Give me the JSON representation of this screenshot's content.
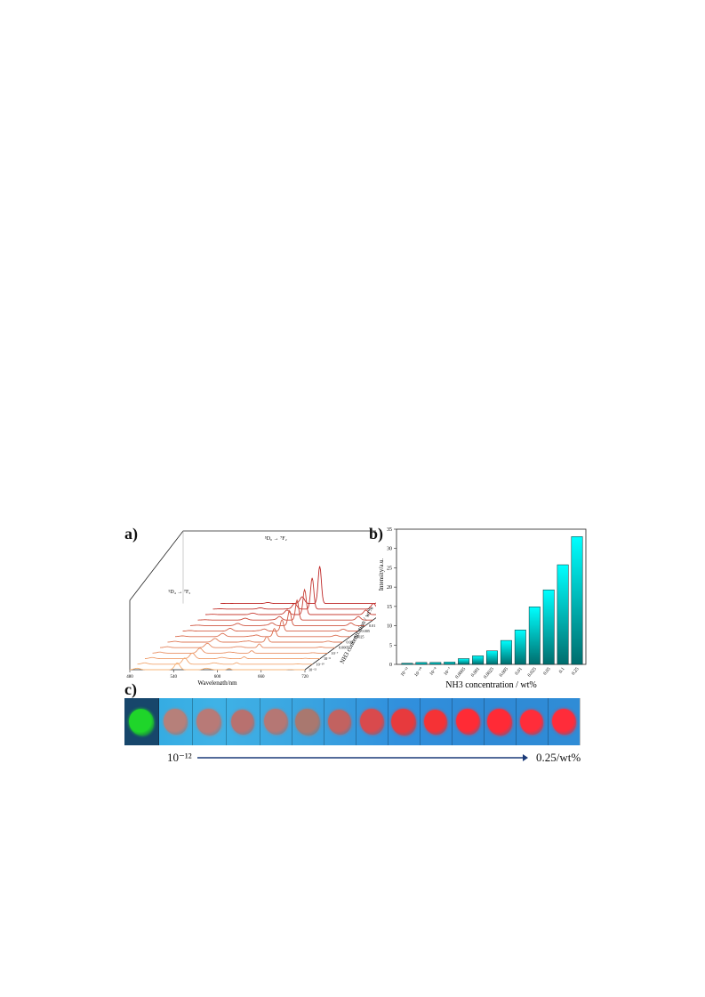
{
  "labels": {
    "a": "a)",
    "b": "b)",
    "c": "c)"
  },
  "chart_data": [
    {
      "type": "line",
      "panel": "a",
      "xlabel": "Wavelength/nm",
      "x_ticks": [
        "480",
        "540",
        "600",
        "660",
        "720"
      ],
      "xlim": [
        480,
        720
      ],
      "depth_label": "NH3 concentration / wt%",
      "concentrations": [
        "10⁻¹²",
        "10⁻¹⁰",
        "10⁻⁸",
        "10⁻⁷",
        "0.0005",
        "0.001",
        "0.0025",
        "0.005",
        "0.01",
        "0.025",
        "0.05",
        "0.1",
        "0.25"
      ],
      "annotations": [
        {
          "text": "⁵D₄ → ⁷F₅",
          "near_x": 545
        },
        {
          "text": "⁵D₀ → ⁷F₂",
          "near_x": 616
        }
      ],
      "tb_peak_545": [
        0.55,
        0.5,
        0.45,
        0.4,
        0.35,
        0.3,
        0.26,
        0.22,
        0.18,
        0.15,
        0.12,
        0.1,
        0.08
      ],
      "eu_peak_616": [
        0.1,
        0.12,
        0.15,
        0.2,
        0.3,
        0.45,
        0.65,
        0.9,
        1.2,
        1.6,
        2.0,
        2.5,
        3.0
      ]
    },
    {
      "type": "bar",
      "panel": "b",
      "categories": [
        "10⁻¹²",
        "10⁻¹⁰",
        "10⁻⁸",
        "10⁻⁷",
        "0.0005",
        "0.001",
        "0.0025",
        "0.005",
        "0.01",
        "0.025",
        "0.05",
        "0.1",
        "0.25"
      ],
      "values": [
        0.3,
        0.5,
        0.5,
        0.6,
        1.5,
        2.2,
        3.5,
        6.2,
        8.9,
        14.9,
        19.3,
        25.8,
        33.1
      ],
      "ylabel": "Intensity/a.u.",
      "xlabel": "NH3 concentration / wt%",
      "ylim": [
        0,
        35
      ],
      "y_ticks": [
        0,
        5,
        10,
        15,
        20,
        25,
        30,
        35
      ],
      "bar_color_top": "#00ffff",
      "bar_color_bottom": "#006d6d"
    }
  ],
  "photos": {
    "start_label": "10⁻¹²",
    "end_label": "0.25/wt%",
    "arrow_color": "#1a3a78",
    "sample_colors": [
      "#1fd52a",
      "#b6807a",
      "#b87a77",
      "#b8716f",
      "#b57774",
      "#a9786f",
      "#c26260",
      "#d94a4d",
      "#e73a3d",
      "#f53235",
      "#ff2b35",
      "#ff2a36",
      "#ff2d3a",
      "#ff2c3a"
    ]
  }
}
